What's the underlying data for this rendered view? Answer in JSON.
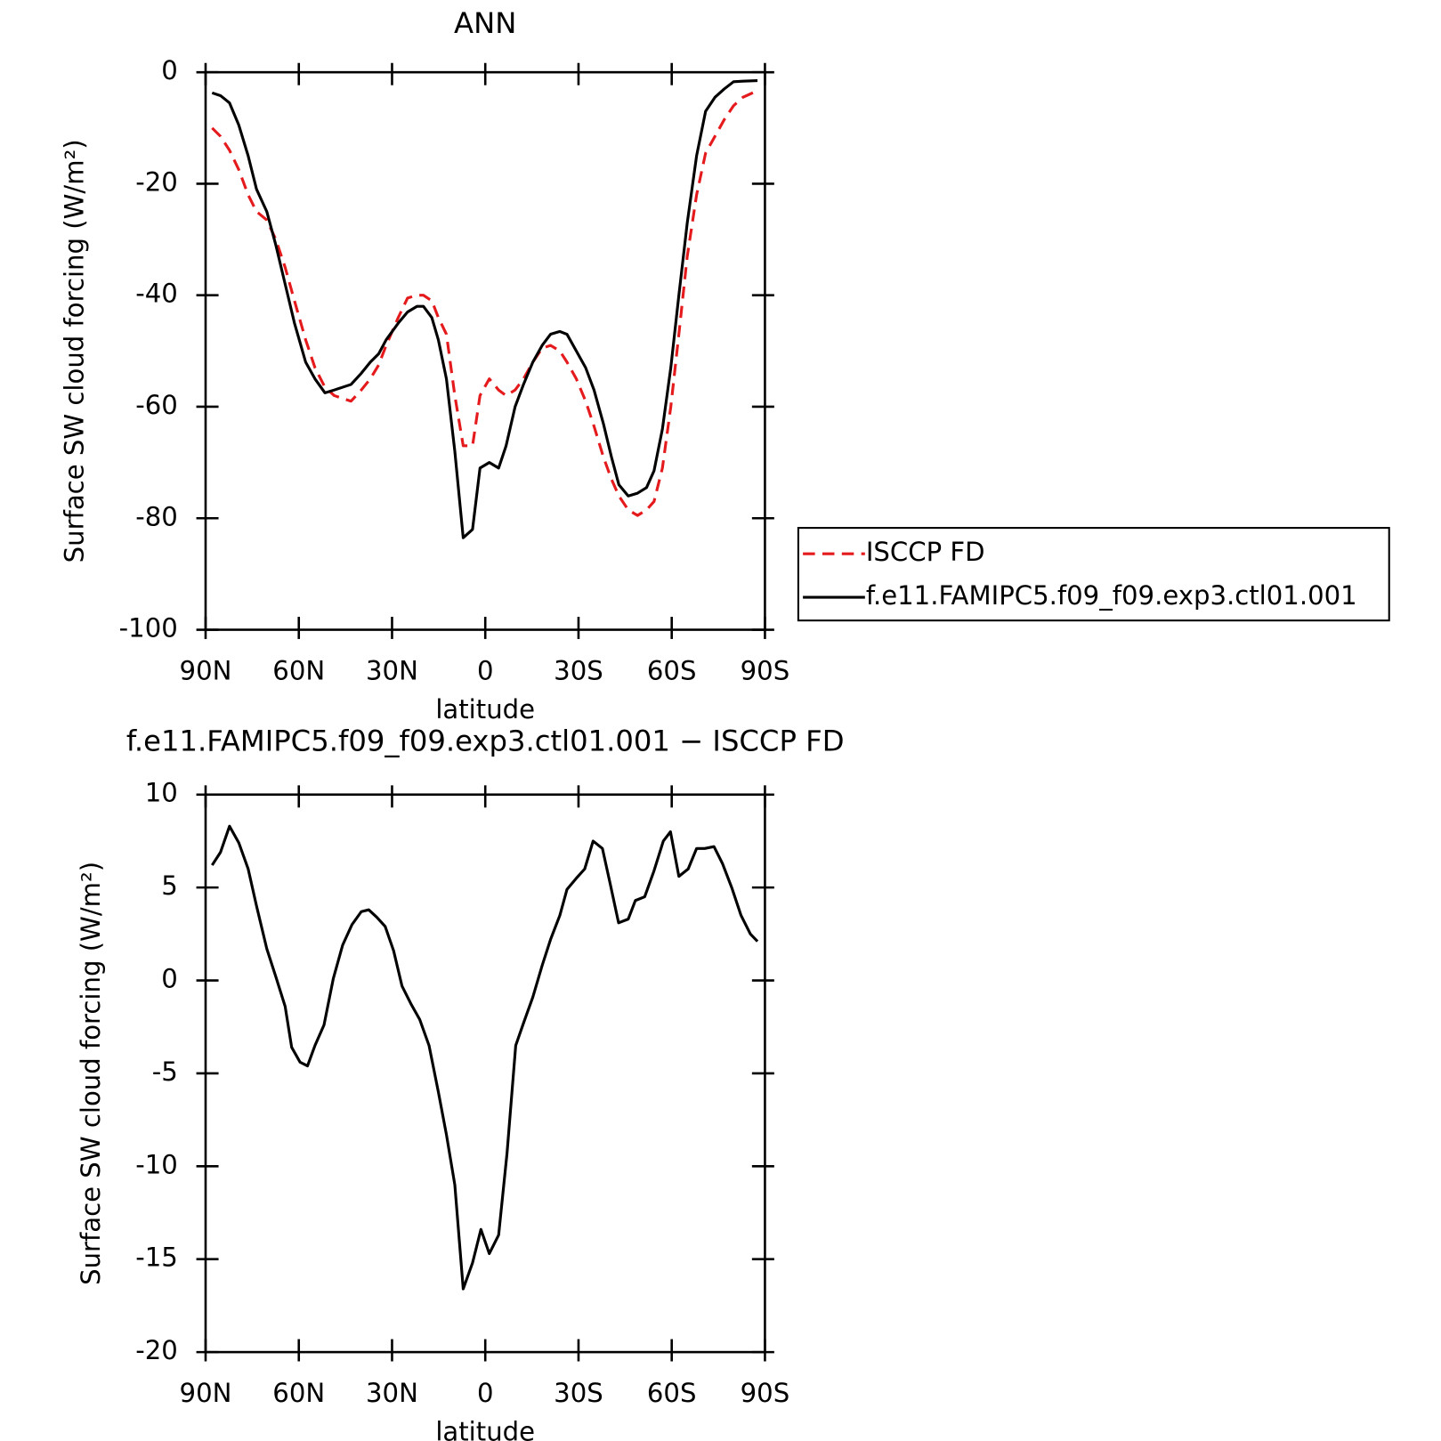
{
  "chart_data": [
    {
      "type": "line",
      "title": "ANN",
      "xlabel": "latitude",
      "ylabel": "Surface SW cloud forcing (W/m²)",
      "xlim": [
        90,
        -90
      ],
      "xticks": [
        {
          "value": 90,
          "label": "90N"
        },
        {
          "value": 60,
          "label": "60N"
        },
        {
          "value": 30,
          "label": "30N"
        },
        0,
        {
          "value": -30,
          "label": "30S"
        },
        {
          "value": -60,
          "label": "60S"
        },
        {
          "value": -90,
          "label": "90S"
        }
      ],
      "ylim": [
        -100,
        0
      ],
      "yticks": [
        -100,
        -80,
        -60,
        -40,
        -20,
        0
      ],
      "x": [
        87.9,
        85.2,
        82.3,
        79.3,
        76.3,
        73.6,
        70.3,
        67.4,
        64.4,
        61.4,
        57.8,
        54.8,
        51.6,
        48.6,
        45.9,
        43.2,
        39.9,
        37.0,
        34.3,
        31.9,
        28.0,
        25.0,
        22.0,
        19.9,
        17.2,
        15.1,
        12.5,
        9.8,
        7.1,
        4.1,
        1.7,
        -1.3,
        -4.3,
        -6.7,
        -9.6,
        -12.3,
        -15.3,
        -18.3,
        -21.0,
        -24.0,
        -26.3,
        -29.3,
        -32.3,
        -35.0,
        -38.0,
        -40.6,
        -43.0,
        -46.0,
        -49.0,
        -51.9,
        -54.3,
        -57.0,
        -59.7,
        -62.3,
        -65.0,
        -68.0,
        -70.9,
        -73.9,
        -76.9,
        -79.9,
        -82.9,
        -87.6
      ],
      "legend": "right",
      "series": [
        {
          "name": "ISCCP FD",
          "color": "#e41a1c",
          "line_style": "dashed",
          "values": [
            -10,
            -11.5,
            -14,
            -17.5,
            -22,
            -25,
            -26.5,
            -30,
            -35,
            -41,
            -48,
            -53,
            -56.5,
            -58,
            -58.5,
            -59,
            -57,
            -55,
            -52.5,
            -49,
            -44,
            -40.5,
            -40,
            -40,
            -41,
            -44,
            -47,
            -58,
            -67,
            -67,
            -58,
            -55,
            -57,
            -58,
            -57,
            -55,
            -52,
            -49.5,
            -49,
            -50,
            -52,
            -55,
            -59,
            -63.5,
            -69,
            -73,
            -76,
            -78.5,
            -79.5,
            -78.5,
            -77,
            -71,
            -60,
            -47,
            -33,
            -22,
            -14.5,
            -11.5,
            -8.5,
            -6,
            -4.5,
            -3.3
          ]
        },
        {
          "name": "f.e11.FAMIPC5.f09_f09.exp3.ctl01.001",
          "color": "#000000",
          "line_style": "solid",
          "values": [
            -3.7,
            -4.2,
            -5.5,
            -9.5,
            -15,
            -21,
            -25,
            -31,
            -38,
            -45,
            -52,
            -55,
            -57.5,
            -57,
            -56.5,
            -56,
            -54,
            -52,
            -50.5,
            -48,
            -45,
            -43,
            -42,
            -42,
            -44,
            -48,
            -55,
            -68,
            -83.5,
            -82,
            -71,
            -70,
            -71,
            -67,
            -60,
            -56,
            -52,
            -49,
            -47,
            -46.5,
            -47,
            -50,
            -53,
            -57,
            -63,
            -69,
            -74,
            -76,
            -75.5,
            -74.5,
            -71.5,
            -64,
            -53,
            -40,
            -27,
            -15,
            -7,
            -4.5,
            -3,
            -1.7,
            -1.6,
            -1.5
          ]
        }
      ]
    },
    {
      "type": "line",
      "title": "f.e11.FAMIPC5.f09_f09.exp3.ctl01.001 − ISCCP FD",
      "xlabel": "latitude",
      "ylabel": "Surface SW cloud forcing (W/m²)",
      "xlim": [
        90,
        -90
      ],
      "xticks": [
        {
          "value": 90,
          "label": "90N"
        },
        {
          "value": 60,
          "label": "60N"
        },
        {
          "value": 30,
          "label": "30N"
        },
        0,
        {
          "value": -30,
          "label": "30S"
        },
        {
          "value": -60,
          "label": "60S"
        },
        {
          "value": -90,
          "label": "90S"
        }
      ],
      "ylim": [
        -20,
        10
      ],
      "yticks": [
        -20,
        -15,
        -10,
        -5,
        0,
        5,
        10
      ],
      "x": [
        87.9,
        85.2,
        82.3,
        79.3,
        76.3,
        73.6,
        70.3,
        67.4,
        64.4,
        62.3,
        59.6,
        57.2,
        54.8,
        51.9,
        48.9,
        45.9,
        42.9,
        39.9,
        37.5,
        34.9,
        32.2,
        29.5,
        26.8,
        23.8,
        21.1,
        18.1,
        15.1,
        12.5,
        9.8,
        7.1,
        4.1,
        1.4,
        -1.3,
        -4.3,
        -7.0,
        -9.8,
        -12.3,
        -15.3,
        -18.3,
        -21.0,
        -24.0,
        -26.3,
        -29.3,
        -32.0,
        -34.7,
        -37.7,
        -40.2,
        -42.9,
        -46.0,
        -48.3,
        -51.3,
        -54.3,
        -57.3,
        -59.6,
        -62.3,
        -65.3,
        -68.0,
        -70.6,
        -73.6,
        -76.3,
        -79.3,
        -82.3,
        -85.3,
        -87.6
      ],
      "color": "#000000",
      "values": [
        6.2,
        6.9,
        8.3,
        7.4,
        6.0,
        4.0,
        1.7,
        0.2,
        -1.4,
        -3.6,
        -4.4,
        -4.6,
        -3.5,
        -2.4,
        0.1,
        1.9,
        3.0,
        3.7,
        3.8,
        3.4,
        2.9,
        1.6,
        -0.3,
        -1.3,
        -2.1,
        -3.5,
        -6.0,
        -8.3,
        -11.0,
        -16.6,
        -15.2,
        -13.4,
        -14.7,
        -13.7,
        -9.3,
        -3.5,
        -2.3,
        -0.9,
        0.8,
        2.2,
        3.5,
        4.9,
        5.5,
        6.0,
        7.5,
        7.1,
        5.2,
        3.1,
        3.3,
        4.3,
        4.5,
        5.9,
        7.5,
        8.0,
        5.6,
        6.0,
        7.1,
        7.1,
        7.2,
        6.3,
        5.0,
        3.5,
        2.5,
        2.1
      ]
    }
  ]
}
